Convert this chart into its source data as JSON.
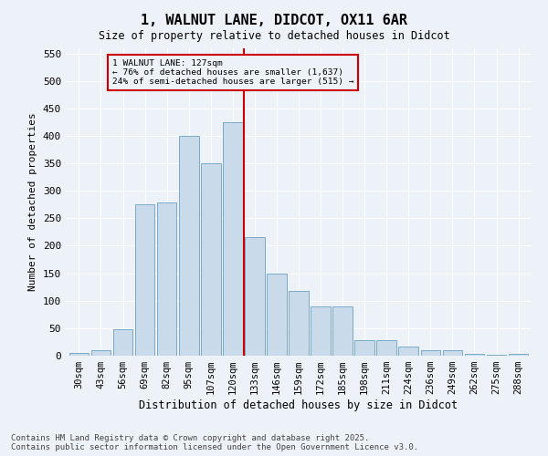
{
  "title": "1, WALNUT LANE, DIDCOT, OX11 6AR",
  "subtitle": "Size of property relative to detached houses in Didcot",
  "xlabel": "Distribution of detached houses by size in Didcot",
  "ylabel": "Number of detached properties",
  "property_label": "1 WALNUT LANE: 127sqm",
  "pct_smaller": 76,
  "n_smaller": 1637,
  "pct_larger_semi": 24,
  "n_larger_semi": 515,
  "categories": [
    "30sqm",
    "43sqm",
    "56sqm",
    "69sqm",
    "82sqm",
    "95sqm",
    "107sqm",
    "120sqm",
    "133sqm",
    "146sqm",
    "159sqm",
    "172sqm",
    "185sqm",
    "198sqm",
    "211sqm",
    "224sqm",
    "236sqm",
    "249sqm",
    "262sqm",
    "275sqm",
    "288sqm"
  ],
  "values": [
    5,
    10,
    48,
    275,
    278,
    400,
    350,
    425,
    215,
    150,
    117,
    90,
    90,
    28,
    28,
    17,
    10,
    10,
    3,
    1,
    3
  ],
  "bar_color": "#c9daea",
  "bar_edge_color": "#7aaac8",
  "vline_color": "#cc0000",
  "vline_index": 7.5,
  "background_color": "#edf1f8",
  "annotation_box_edge_color": "#cc0000",
  "ylim": [
    0,
    560
  ],
  "yticks": [
    0,
    50,
    100,
    150,
    200,
    250,
    300,
    350,
    400,
    450,
    500,
    550
  ],
  "footer": "Contains HM Land Registry data © Crown copyright and database right 2025.\nContains public sector information licensed under the Open Government Licence v3.0."
}
